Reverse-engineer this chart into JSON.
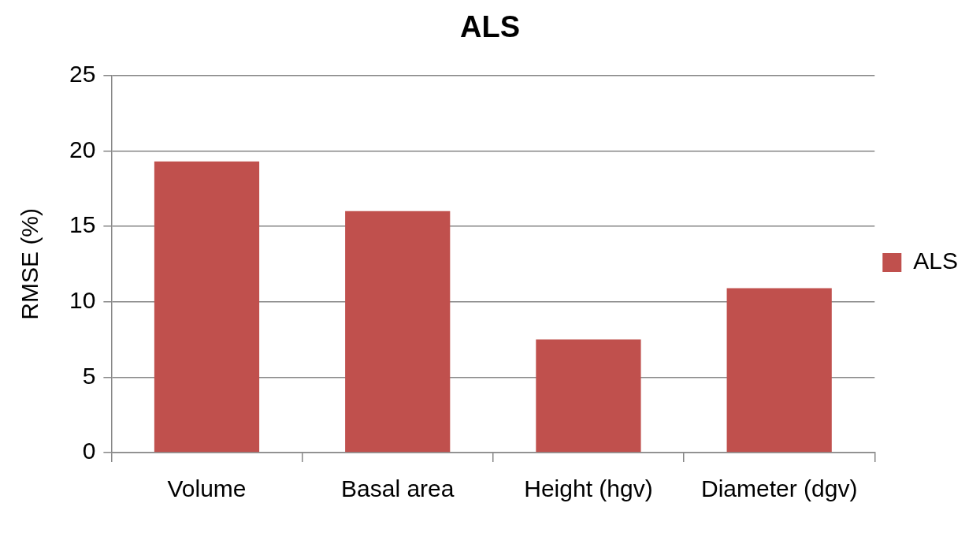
{
  "chart_data": {
    "type": "bar",
    "title": "ALS",
    "ylabel": "RMSE (%)",
    "categories": [
      "Volume",
      "Basal area",
      "Height (hgv)",
      "Diameter (dgv)"
    ],
    "series": [
      {
        "name": "ALS",
        "color": "#c0504d",
        "values": [
          19.3,
          16.0,
          7.5,
          10.9
        ]
      }
    ],
    "ylim": [
      0,
      25
    ],
    "yticks": [
      0,
      5,
      10,
      15,
      20,
      25
    ],
    "grid": "y",
    "legend": "right"
  }
}
